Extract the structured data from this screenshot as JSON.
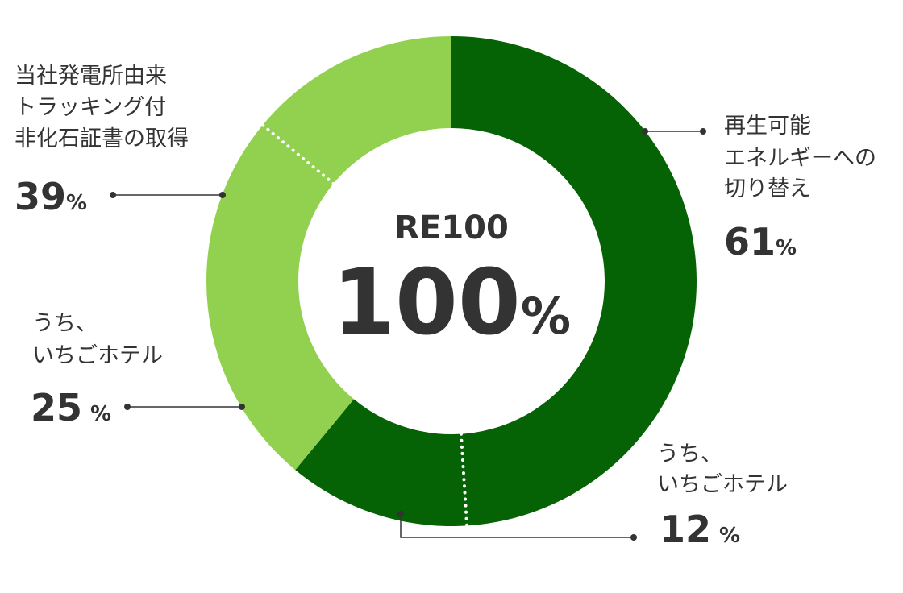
{
  "chart_data": {
    "type": "donut",
    "center_title": "RE100",
    "center_value": 100,
    "unit": "%",
    "slices": [
      {
        "label": [
          "再生可能",
          "エネルギーへの",
          "切り替え"
        ],
        "value": 61,
        "color": "#056305",
        "sub": {
          "label": [
            "うち、",
            "いちごホテル"
          ],
          "value": 12
        }
      },
      {
        "label": [
          "当社発電所由来",
          "トラッキング付",
          "非化石証書の取得"
        ],
        "value": 39,
        "color": "#92d050",
        "sub": {
          "label": [
            "うち、",
            "いちごホテル"
          ],
          "value": 25
        }
      }
    ]
  }
}
